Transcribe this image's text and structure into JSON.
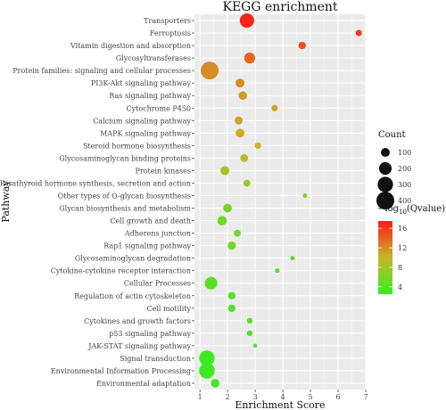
{
  "chart_data": {
    "type": "scatter",
    "title": "KEGG enrichment",
    "xlabel": "Enrichment Score",
    "ylabel": "Pathway",
    "xlim": [
      0.8,
      7.0
    ],
    "xticks": [
      1,
      2,
      3,
      4,
      5,
      6,
      7
    ],
    "grid": true,
    "legend_position": "right",
    "size_legend": {
      "title": "Count",
      "values": [
        100,
        200,
        300,
        400
      ]
    },
    "color_legend": {
      "title_prefix": "−log",
      "title_sub": "10",
      "title_suffix": "(Qvalue)",
      "ticks": [
        4,
        8,
        12,
        16
      ],
      "range": [
        2.5,
        17.5
      ],
      "low_color": "#33ee22",
      "mid_color": "#c8b628",
      "high_color": "#ff1a1a"
    },
    "points": [
      {
        "pathway": "Transporters",
        "x": 2.7,
        "count": 260,
        "qvalue": 17
      },
      {
        "pathway": "Ferroptosis",
        "x": 6.75,
        "count": 50,
        "qvalue": 16
      },
      {
        "pathway": "Vitamin digestion and absorption",
        "x": 4.7,
        "count": 70,
        "qvalue": 15
      },
      {
        "pathway": "Glycosyltransferases",
        "x": 2.8,
        "count": 150,
        "qvalue": 14
      },
      {
        "pathway": "Protein families: signaling and cellular processes",
        "x": 1.35,
        "count": 400,
        "qvalue": 12
      },
      {
        "pathway": "PI3K-Akt signaling pathway",
        "x": 2.45,
        "count": 100,
        "qvalue": 12
      },
      {
        "pathway": "Ras signaling pathway",
        "x": 2.55,
        "count": 90,
        "qvalue": 11.5
      },
      {
        "pathway": "Cytochrome P450",
        "x": 3.7,
        "count": 50,
        "qvalue": 11
      },
      {
        "pathway": "Calcium signaling pathway",
        "x": 2.4,
        "count": 80,
        "qvalue": 11
      },
      {
        "pathway": "MAPK signaling pathway",
        "x": 2.45,
        "count": 95,
        "qvalue": 10.5
      },
      {
        "pathway": "Steroid hormone biosynthesis",
        "x": 3.1,
        "count": 55,
        "qvalue": 10
      },
      {
        "pathway": "Glycosaminoglycan binding proteins",
        "x": 2.6,
        "count": 80,
        "qvalue": 9.5
      },
      {
        "pathway": "Protein kinases",
        "x": 1.9,
        "count": 100,
        "qvalue": 8
      },
      {
        "pathway": "Parathyroid hormone synthesis, secretion and action",
        "x": 2.7,
        "count": 60,
        "qvalue": 7.5
      },
      {
        "pathway": "Other types of O-glycan biosynthesis",
        "x": 4.8,
        "count": 25,
        "qvalue": 6.5
      },
      {
        "pathway": "Glycan biosynthesis and metabolism",
        "x": 2.0,
        "count": 95,
        "qvalue": 6
      },
      {
        "pathway": "Cell growth and death",
        "x": 1.8,
        "count": 110,
        "qvalue": 5.5
      },
      {
        "pathway": "Adherens junction",
        "x": 2.35,
        "count": 60,
        "qvalue": 5.5
      },
      {
        "pathway": "Rap1 signaling pathway",
        "x": 2.15,
        "count": 85,
        "qvalue": 5.5
      },
      {
        "pathway": "Glycosaminoglycan degradation",
        "x": 4.35,
        "count": 25,
        "qvalue": 5
      },
      {
        "pathway": "Cytokine-cytokine receptor interaction",
        "x": 3.8,
        "count": 25,
        "qvalue": 4.5
      },
      {
        "pathway": "Cellular Processes",
        "x": 1.4,
        "count": 200,
        "qvalue": 4.5
      },
      {
        "pathway": "Regulation of actin cytoskeleton",
        "x": 2.15,
        "count": 70,
        "qvalue": 4.5
      },
      {
        "pathway": "Cell motility",
        "x": 2.15,
        "count": 70,
        "qvalue": 4.5
      },
      {
        "pathway": "Cytokines and growth factors",
        "x": 2.8,
        "count": 40,
        "qvalue": 4
      },
      {
        "pathway": "p53 signaling pathway",
        "x": 2.8,
        "count": 40,
        "qvalue": 4
      },
      {
        "pathway": "JAK-STAT signaling pathway",
        "x": 3.0,
        "count": 20,
        "qvalue": 3.5
      },
      {
        "pathway": "Signal transduction",
        "x": 1.25,
        "count": 300,
        "qvalue": 3
      },
      {
        "pathway": "Environmental Information Processing",
        "x": 1.25,
        "count": 310,
        "qvalue": 3
      },
      {
        "pathway": "Environmental adaptation",
        "x": 1.55,
        "count": 90,
        "qvalue": 3
      }
    ]
  }
}
